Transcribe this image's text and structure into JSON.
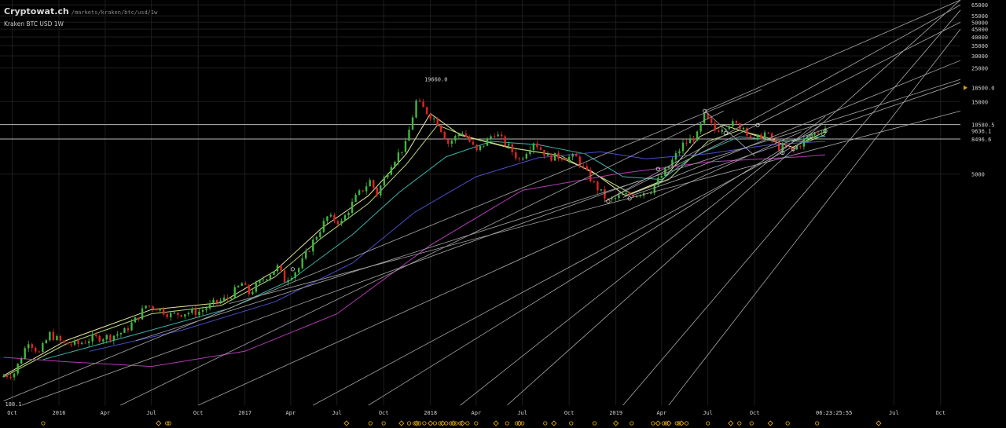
{
  "header": {
    "site": "Cryptowat.ch",
    "path": "/markets/kraken/btc/usd/1w",
    "symbol": "Kraken BTC USD 1W"
  },
  "clock": "06:23:25:55",
  "colors": {
    "bg": "#000000",
    "up": "#3fb83f",
    "down": "#e02424",
    "grid": "#1e1e1e",
    "hline": "#b8b8b8",
    "trend": "#a8a8a8",
    "ma_fast": "#e6e6a0",
    "ma_mid": "#b8d87a",
    "ma_slow": "#3bb3a8",
    "ma_slower": "#4b4ec8",
    "ma_slowest": "#b23ab2",
    "marker": "#d4a017"
  },
  "chart_data": {
    "type": "candlestick",
    "scale": "log",
    "x_range": [
      "2015-09-07",
      "2020-11-09"
    ],
    "y_range": [
      150,
      70000
    ],
    "grid": true,
    "x_ticks": [
      {
        "label": "Oct",
        "date": "2015-10-01"
      },
      {
        "label": "2016",
        "date": "2016-01-01"
      },
      {
        "label": "Apr",
        "date": "2016-04-01"
      },
      {
        "label": "Jul",
        "date": "2016-07-01"
      },
      {
        "label": "Oct",
        "date": "2016-10-01"
      },
      {
        "label": "2017",
        "date": "2017-01-01"
      },
      {
        "label": "Apr",
        "date": "2017-04-01"
      },
      {
        "label": "Jul",
        "date": "2017-07-01"
      },
      {
        "label": "Oct",
        "date": "2017-10-01"
      },
      {
        "label": "2018",
        "date": "2018-01-01"
      },
      {
        "label": "Apr",
        "date": "2018-04-01"
      },
      {
        "label": "Jul",
        "date": "2018-07-01"
      },
      {
        "label": "Oct",
        "date": "2018-10-01"
      },
      {
        "label": "2019",
        "date": "2019-01-01"
      },
      {
        "label": "Apr",
        "date": "2019-04-01"
      },
      {
        "label": "Jul",
        "date": "2019-07-01"
      },
      {
        "label": "Oct",
        "date": "2019-10-01"
      },
      {
        "label": "Jul",
        "date": "2020-07-01"
      },
      {
        "label": "Oct",
        "date": "2020-10-01"
      }
    ],
    "y_ticks": [
      65000,
      55000,
      50000,
      45000,
      40000,
      35000,
      30000,
      25000,
      15000,
      5000
    ],
    "price_labels": [
      {
        "value": 18500,
        "label": "18500.0",
        "marker": true
      },
      {
        "value": 10580.5,
        "label": "10580.5",
        "line": true
      },
      {
        "value": 9636.1,
        "label": "9636.1"
      },
      {
        "value": 8496.6,
        "label": "8496.6",
        "line": true
      }
    ],
    "annotations": [
      {
        "label": "19660.0",
        "date": "2017-12-17",
        "value": 19660
      },
      {
        "label": "188.1",
        "date": "2015-09-14",
        "value": 188.1
      }
    ],
    "price_points": [
      [
        "2015-09-07",
        230
      ],
      [
        "2015-10-05",
        245
      ],
      [
        "2015-11-02",
        400
      ],
      [
        "2015-11-23",
        330
      ],
      [
        "2015-12-14",
        440
      ],
      [
        "2016-01-11",
        380
      ],
      [
        "2016-02-08",
        380
      ],
      [
        "2016-03-07",
        415
      ],
      [
        "2016-04-11",
        425
      ],
      [
        "2016-05-09",
        460
      ],
      [
        "2016-06-06",
        580
      ],
      [
        "2016-06-20",
        680
      ],
      [
        "2016-07-11",
        660
      ],
      [
        "2016-08-08",
        590
      ],
      [
        "2016-09-05",
        610
      ],
      [
        "2016-10-03",
        620
      ],
      [
        "2016-10-31",
        700
      ],
      [
        "2016-11-28",
        760
      ],
      [
        "2016-12-26",
        950
      ],
      [
        "2017-01-09",
        820
      ],
      [
        "2017-02-06",
        1020
      ],
      [
        "2017-03-06",
        1220
      ],
      [
        "2017-03-20",
        1000
      ],
      [
        "2017-04-17",
        1200
      ],
      [
        "2017-05-15",
        1800
      ],
      [
        "2017-06-12",
        2600
      ],
      [
        "2017-07-10",
        2400
      ],
      [
        "2017-08-07",
        3500
      ],
      [
        "2017-09-04",
        4500
      ],
      [
        "2017-09-18",
        3700
      ],
      [
        "2017-10-16",
        5900
      ],
      [
        "2017-11-13",
        7800
      ],
      [
        "2017-12-04",
        15000
      ],
      [
        "2017-12-18",
        13500
      ],
      [
        "2018-01-15",
        11000
      ],
      [
        "2018-02-05",
        8000
      ],
      [
        "2018-03-05",
        9500
      ],
      [
        "2018-04-02",
        7000
      ],
      [
        "2018-05-07",
        9400
      ],
      [
        "2018-06-04",
        7500
      ],
      [
        "2018-06-25",
        6200
      ],
      [
        "2018-07-23",
        8200
      ],
      [
        "2018-08-20",
        6500
      ],
      [
        "2018-09-17",
        6500
      ],
      [
        "2018-10-15",
        6400
      ],
      [
        "2018-11-19",
        4300
      ],
      [
        "2018-12-17",
        3300
      ],
      [
        "2019-01-14",
        3600
      ],
      [
        "2019-02-11",
        3700
      ],
      [
        "2019-03-11",
        3950
      ],
      [
        "2019-04-08",
        5200
      ],
      [
        "2019-05-13",
        7800
      ],
      [
        "2019-06-10",
        9000
      ],
      [
        "2019-06-24",
        12000
      ],
      [
        "2019-07-15",
        9700
      ],
      [
        "2019-08-12",
        10800
      ],
      [
        "2019-09-09",
        10200
      ],
      [
        "2019-09-30",
        8300
      ],
      [
        "2019-10-21",
        9300
      ],
      [
        "2019-11-18",
        7500
      ],
      [
        "2019-12-16",
        7200
      ],
      [
        "2020-01-13",
        8700
      ],
      [
        "2020-02-03",
        9600
      ],
      [
        "2020-02-17",
        10100
      ]
    ],
    "moving_averages": [
      {
        "key": "ma_fast",
        "points": [
          [
            "2015-09-14",
            235
          ],
          [
            "2016-01-15",
            400
          ],
          [
            "2016-07-01",
            640
          ],
          [
            "2016-11-15",
            710
          ],
          [
            "2017-03-01",
            1150
          ],
          [
            "2017-06-01",
            2200
          ],
          [
            "2017-09-01",
            3600
          ],
          [
            "2017-11-15",
            6800
          ],
          [
            "2018-01-01",
            12500
          ],
          [
            "2018-03-01",
            9000
          ],
          [
            "2018-06-01",
            7500
          ],
          [
            "2018-09-01",
            6700
          ],
          [
            "2018-11-15",
            5200
          ],
          [
            "2019-01-20",
            3600
          ],
          [
            "2019-04-01",
            4500
          ],
          [
            "2019-06-15",
            8800
          ],
          [
            "2019-08-01",
            10500
          ],
          [
            "2019-10-15",
            8700
          ],
          [
            "2019-12-15",
            7500
          ],
          [
            "2020-02-17",
            9500
          ]
        ]
      },
      {
        "key": "ma_mid",
        "points": [
          [
            "2015-09-14",
            230
          ],
          [
            "2016-01-15",
            380
          ],
          [
            "2016-07-01",
            600
          ],
          [
            "2016-11-15",
            680
          ],
          [
            "2017-03-01",
            1050
          ],
          [
            "2017-06-01",
            1900
          ],
          [
            "2017-09-01",
            3200
          ],
          [
            "2017-11-15",
            5800
          ],
          [
            "2018-01-15",
            10500
          ],
          [
            "2018-03-15",
            8800
          ],
          [
            "2018-06-15",
            7400
          ],
          [
            "2018-09-15",
            6600
          ],
          [
            "2018-12-01",
            4800
          ],
          [
            "2019-02-01",
            3700
          ],
          [
            "2019-04-15",
            4600
          ],
          [
            "2019-07-01",
            8200
          ],
          [
            "2019-09-01",
            9700
          ],
          [
            "2019-11-15",
            8300
          ],
          [
            "2020-01-15",
            8200
          ],
          [
            "2020-02-17",
            9100
          ]
        ]
      },
      {
        "key": "ma_slow",
        "points": [
          [
            "2015-12-01",
            300
          ],
          [
            "2016-06-01",
            440
          ],
          [
            "2016-12-01",
            650
          ],
          [
            "2017-04-01",
            1000
          ],
          [
            "2017-08-01",
            2000
          ],
          [
            "2017-11-01",
            3800
          ],
          [
            "2018-02-01",
            6500
          ],
          [
            "2018-05-01",
            8200
          ],
          [
            "2018-08-01",
            7800
          ],
          [
            "2018-11-01",
            6800
          ],
          [
            "2019-01-15",
            4800
          ],
          [
            "2019-04-01",
            4600
          ],
          [
            "2019-06-01",
            6500
          ],
          [
            "2019-09-01",
            8800
          ],
          [
            "2019-12-01",
            8200
          ],
          [
            "2020-02-17",
            8900
          ]
        ]
      },
      {
        "key": "ma_slower",
        "points": [
          [
            "2016-03-01",
            340
          ],
          [
            "2016-09-01",
            470
          ],
          [
            "2017-03-01",
            720
          ],
          [
            "2017-08-01",
            1300
          ],
          [
            "2017-12-01",
            2800
          ],
          [
            "2018-04-01",
            4800
          ],
          [
            "2018-08-01",
            6400
          ],
          [
            "2018-12-01",
            7000
          ],
          [
            "2019-03-01",
            6300
          ],
          [
            "2019-07-01",
            6800
          ],
          [
            "2019-11-01",
            7800
          ],
          [
            "2020-02-17",
            8200
          ]
        ]
      },
      {
        "key": "ma_slowest",
        "points": [
          [
            "2015-09-14",
            310
          ],
          [
            "2016-01-15",
            290
          ],
          [
            "2016-07-01",
            270
          ],
          [
            "2017-01-01",
            340
          ],
          [
            "2017-07-01",
            600
          ],
          [
            "2018-01-01",
            1700
          ],
          [
            "2018-07-01",
            3900
          ],
          [
            "2019-01-01",
            5000
          ],
          [
            "2019-07-01",
            6000
          ],
          [
            "2020-01-01",
            6500
          ],
          [
            "2020-02-17",
            6700
          ]
        ]
      }
    ],
    "trend_lines": [
      [
        [
          "2015-09-14",
          160
        ],
        [
          "2019-10-15",
          18000
        ]
      ],
      [
        [
          "2015-10-20",
          150
        ],
        [
          "2019-02-15",
          4500
        ]
      ],
      [
        [
          "2016-05-01",
          150
        ],
        [
          "2019-08-01",
          13000
        ]
      ],
      [
        [
          "2016-10-01",
          150
        ],
        [
          "2020-01-01",
          9500
        ]
      ],
      [
        [
          "2017-05-15",
          150
        ],
        [
          "2019-12-10",
          7400
        ]
      ],
      [
        [
          "2017-09-01",
          150
        ],
        [
          "2020-02-10",
          10600
        ]
      ],
      [
        [
          "2018-03-01",
          150
        ],
        [
          "2020-02-17",
          12000
        ]
      ],
      [
        [
          "2018-06-01",
          150
        ],
        [
          "2020-11-09",
          70000
        ]
      ],
      [
        [
          "2019-01-15",
          150
        ],
        [
          "2020-11-09",
          60000
        ]
      ],
      [
        [
          "2019-04-15",
          150
        ],
        [
          "2020-11-09",
          45000
        ]
      ],
      [
        [
          "2016-06-01",
          400
        ],
        [
          "2020-11-09",
          21000
        ]
      ],
      [
        [
          "2016-12-01",
          700
        ],
        [
          "2020-11-09",
          13000
        ]
      ],
      [
        [
          "2018-12-10",
          3300
        ],
        [
          "2020-11-09",
          65000
        ]
      ],
      [
        [
          "2018-12-10",
          3300
        ],
        [
          "2020-11-09",
          50000
        ]
      ],
      [
        [
          "2019-01-15",
          3500
        ],
        [
          "2020-11-09",
          28000
        ]
      ],
      [
        [
          "2019-02-01",
          3600
        ],
        [
          "2020-11-09",
          20000
        ]
      ],
      [
        [
          "2019-06-25",
          13000
        ],
        [
          "2020-11-09",
          70000
        ]
      ],
      [
        [
          "2019-06-25",
          13000
        ],
        [
          "2019-10-01",
          6600
        ]
      ]
    ],
    "bottom_markers": [
      "2015-12-01",
      "2016-07-15",
      "2016-08-01",
      "2016-08-05",
      "2017-07-20",
      "2017-09-05",
      "2017-10-01",
      "2017-11-05",
      "2017-11-20",
      "2017-12-01",
      "2017-12-05",
      "2017-12-10",
      "2017-12-20",
      "2018-01-01",
      "2018-01-10",
      "2018-01-20",
      "2018-01-25",
      "2018-02-01",
      "2018-02-10",
      "2018-02-15",
      "2018-02-20",
      "2018-03-01",
      "2018-03-05",
      "2018-03-15",
      "2018-04-01",
      "2018-05-10",
      "2018-06-01",
      "2018-06-20",
      "2018-06-25",
      "2018-07-01",
      "2018-08-15",
      "2018-09-01",
      "2018-10-05",
      "2018-11-20",
      "2019-01-01",
      "2019-02-01",
      "2019-03-15",
      "2019-03-25",
      "2019-04-05",
      "2019-04-10",
      "2019-04-15",
      "2019-05-01",
      "2019-05-05",
      "2019-05-10",
      "2019-05-20",
      "2019-07-01",
      "2019-08-15",
      "2019-09-01",
      "2019-09-25",
      "2019-11-01",
      "2019-12-05",
      "2020-02-01",
      "2020-06-01"
    ]
  }
}
